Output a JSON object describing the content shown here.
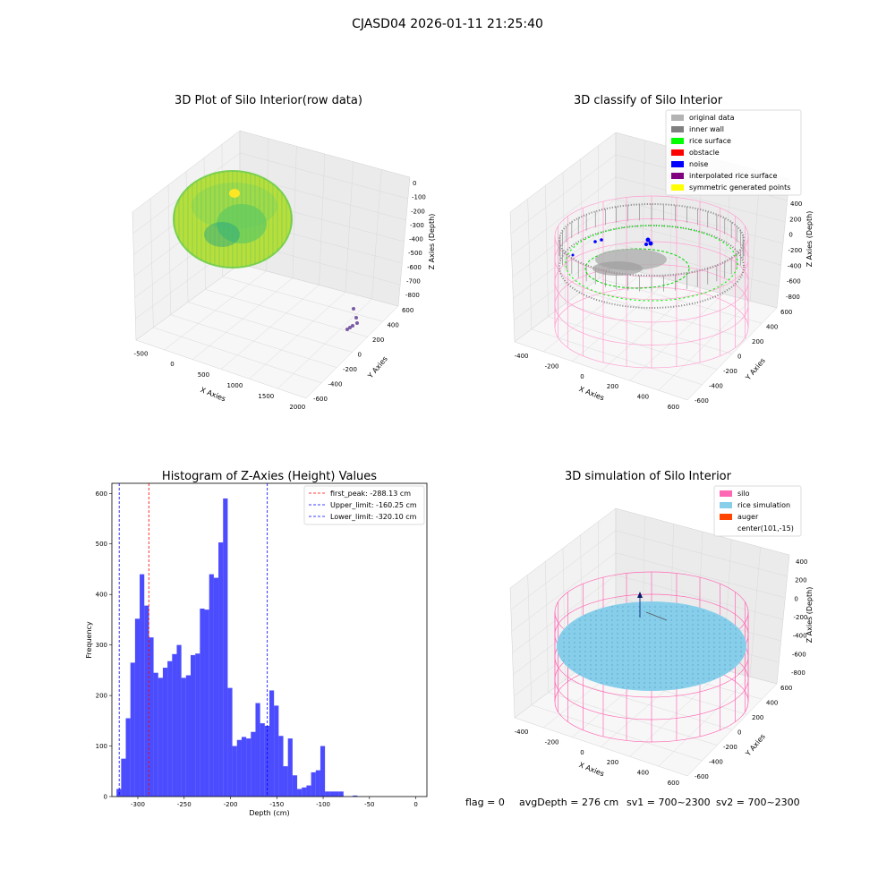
{
  "figure": {
    "suptitle": "CJASD04 2026-01-11 21:25:40",
    "footer": {
      "flag": "flag = 0",
      "avg": "avgDepth = 276 cm",
      "sv1": "sv1 = 700~2300",
      "sv2": "sv2 = 700~2300"
    }
  },
  "panels": {
    "raw": {
      "title": "3D Plot of Silo Interior(row data)",
      "xlabel": "X Axies",
      "ylabel": "Y Axies",
      "zlabel": "Z Axies (Depth)",
      "xticks": [
        "-500",
        "0",
        "500",
        "1000",
        "1500",
        "2000"
      ],
      "yticks": [
        "-600",
        "-400",
        "-200",
        "0",
        "200",
        "400",
        "600"
      ],
      "zticks": [
        "0",
        "-100",
        "-200",
        "-300",
        "-400",
        "-500",
        "-600",
        "-700",
        "-800"
      ]
    },
    "classify": {
      "title": "3D classify of Silo Interior",
      "xlabel": "X Axies",
      "ylabel": "Y Axies",
      "zlabel": "Z Axies (Depth)",
      "xticks": [
        "-400",
        "-200",
        "0",
        "200",
        "400",
        "600"
      ],
      "yticks": [
        "-600",
        "-400",
        "-200",
        "0",
        "200",
        "400",
        "600"
      ],
      "zticks": [
        "400",
        "200",
        "0",
        "-200",
        "-400",
        "-600",
        "-800"
      ],
      "legend": [
        {
          "label": "original data",
          "color": "#b3b3b3"
        },
        {
          "label": "inner wall",
          "color": "#808080"
        },
        {
          "label": "rice surface",
          "color": "#00ff00"
        },
        {
          "label": "obstacle",
          "color": "#ff0000"
        },
        {
          "label": "noise",
          "color": "#0000ff"
        },
        {
          "label": "interpolated rice surface",
          "color": "#800080"
        },
        {
          "label": "symmetric generated points",
          "color": "#ffff00"
        }
      ]
    },
    "simulation": {
      "title": "3D simulation of Silo Interior",
      "xlabel": "X Axies",
      "ylabel": "Y Axies",
      "zlabel": "Z Axies (Depth)",
      "xticks": [
        "-400",
        "-200",
        "0",
        "200",
        "400",
        "600"
      ],
      "yticks": [
        "-600",
        "-400",
        "-200",
        "0",
        "200",
        "400",
        "600"
      ],
      "zticks": [
        "400",
        "200",
        "0",
        "-200",
        "-400",
        "-600",
        "-800"
      ],
      "legend": [
        {
          "label": "silo",
          "color": "#ff69b4"
        },
        {
          "label": "rice simulation",
          "color": "#87ceeb"
        },
        {
          "label": "auger",
          "color": "#ff4500"
        },
        {
          "label": "center(101,-15)",
          "color": ""
        }
      ]
    }
  },
  "chart_data": {
    "type": "bar",
    "title": "Histogram of Z-Axies (Height) Values",
    "xlabel": "Depth (cm)",
    "ylabel": "Frequency",
    "xlim": [
      -328,
      12
    ],
    "ylim": [
      0,
      620
    ],
    "xticks": [
      -300,
      -250,
      -200,
      -150,
      -100,
      -50,
      0
    ],
    "yticks": [
      0,
      100,
      200,
      300,
      400,
      500,
      600
    ],
    "bar_color": "#0000ff",
    "bin_edges": [
      -323,
      -318,
      -313,
      -308,
      -303,
      -298,
      -293,
      -288,
      -283,
      -278,
      -273,
      -268,
      -263,
      -258,
      -253,
      -248,
      -243,
      -238,
      -233,
      -228,
      -223,
      -218,
      -213,
      -208,
      -203,
      -198,
      -193,
      -188,
      -183,
      -178,
      -173,
      -168,
      -163,
      -158,
      -153,
      -148,
      -143,
      -138,
      -133,
      -128,
      -123,
      -118,
      -113,
      -108,
      -103,
      -98,
      -93,
      -88,
      -83,
      -78,
      -73,
      -68,
      -63,
      -58,
      -53,
      -48,
      -43,
      -38,
      -33,
      -28,
      -23,
      -18,
      -13,
      -8,
      -3,
      2
    ],
    "counts": [
      15,
      75,
      155,
      265,
      352,
      440,
      378,
      315,
      245,
      235,
      255,
      268,
      282,
      300,
      235,
      240,
      280,
      283,
      372,
      370,
      440,
      433,
      503,
      590,
      215,
      100,
      112,
      118,
      115,
      128,
      185,
      145,
      140,
      210,
      180,
      120,
      60,
      115,
      42,
      15,
      18,
      22,
      48,
      52,
      100,
      10,
      10,
      10,
      10,
      0,
      0,
      2,
      0,
      0,
      0,
      0,
      0,
      0,
      0,
      0,
      0,
      0,
      0,
      0,
      0
    ],
    "vlines": [
      {
        "label": "first_peak: -288.13 cm",
        "x": -288.13,
        "color": "#ff0000"
      },
      {
        "label": "Upper_limit: -160.25 cm",
        "x": -160.25,
        "color": "#0000ff"
      },
      {
        "label": "Lower_limit: -320.10 cm",
        "x": -320.1,
        "color": "#0000ff"
      }
    ],
    "grid": false,
    "legend_position": "top-right"
  }
}
